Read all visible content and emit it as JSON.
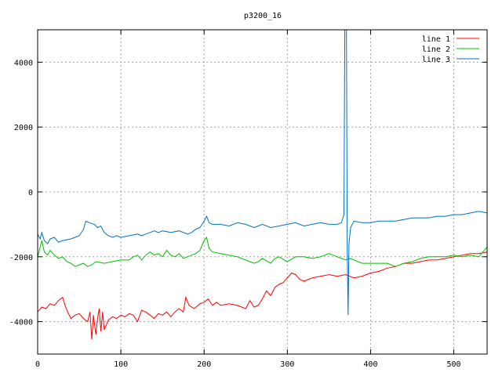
{
  "chart_data": {
    "type": "line",
    "title": "p3200_16",
    "xlabel": "",
    "ylabel": "",
    "xlim": [
      0,
      540
    ],
    "ylim": [
      -5000,
      5000
    ],
    "x_ticks": [
      0,
      100,
      200,
      300,
      400,
      500
    ],
    "y_ticks": [
      -4000,
      -2000,
      0,
      2000,
      4000
    ],
    "grid": true,
    "legend_position": "top-right",
    "series": [
      {
        "name": "line 1",
        "color": "#ff0000",
        "points": [
          [
            0,
            -3700
          ],
          [
            5,
            -3550
          ],
          [
            10,
            -3600
          ],
          [
            15,
            -3450
          ],
          [
            20,
            -3500
          ],
          [
            25,
            -3350
          ],
          [
            30,
            -3250
          ],
          [
            33,
            -3500
          ],
          [
            36,
            -3700
          ],
          [
            40,
            -3900
          ],
          [
            45,
            -3800
          ],
          [
            50,
            -3750
          ],
          [
            55,
            -3900
          ],
          [
            60,
            -4000
          ],
          [
            63,
            -3700
          ],
          [
            65,
            -4550
          ],
          [
            67,
            -3800
          ],
          [
            70,
            -4400
          ],
          [
            72,
            -3900
          ],
          [
            74,
            -3600
          ],
          [
            76,
            -4300
          ],
          [
            78,
            -3700
          ],
          [
            80,
            -4250
          ],
          [
            85,
            -3950
          ],
          [
            90,
            -3850
          ],
          [
            95,
            -3900
          ],
          [
            100,
            -3800
          ],
          [
            105,
            -3850
          ],
          [
            110,
            -3750
          ],
          [
            115,
            -3800
          ],
          [
            120,
            -4000
          ],
          [
            125,
            -3650
          ],
          [
            130,
            -3700
          ],
          [
            135,
            -3800
          ],
          [
            140,
            -3900
          ],
          [
            145,
            -3750
          ],
          [
            150,
            -3800
          ],
          [
            155,
            -3700
          ],
          [
            160,
            -3850
          ],
          [
            165,
            -3700
          ],
          [
            170,
            -3600
          ],
          [
            175,
            -3700
          ],
          [
            178,
            -3250
          ],
          [
            182,
            -3500
          ],
          [
            188,
            -3600
          ],
          [
            195,
            -3450
          ],
          [
            200,
            -3400
          ],
          [
            205,
            -3300
          ],
          [
            210,
            -3500
          ],
          [
            215,
            -3400
          ],
          [
            220,
            -3500
          ],
          [
            230,
            -3450
          ],
          [
            240,
            -3500
          ],
          [
            250,
            -3600
          ],
          [
            255,
            -3350
          ],
          [
            260,
            -3550
          ],
          [
            265,
            -3500
          ],
          [
            270,
            -3300
          ],
          [
            275,
            -3050
          ],
          [
            280,
            -3200
          ],
          [
            285,
            -2950
          ],
          [
            290,
            -2850
          ],
          [
            295,
            -2800
          ],
          [
            300,
            -2650
          ],
          [
            305,
            -2500
          ],
          [
            310,
            -2550
          ],
          [
            315,
            -2700
          ],
          [
            320,
            -2750
          ],
          [
            330,
            -2650
          ],
          [
            340,
            -2600
          ],
          [
            350,
            -2550
          ],
          [
            360,
            -2600
          ],
          [
            370,
            -2550
          ],
          [
            380,
            -2650
          ],
          [
            390,
            -2600
          ],
          [
            400,
            -2500
          ],
          [
            410,
            -2450
          ],
          [
            420,
            -2350
          ],
          [
            430,
            -2300
          ],
          [
            440,
            -2200
          ],
          [
            450,
            -2200
          ],
          [
            460,
            -2150
          ],
          [
            470,
            -2100
          ],
          [
            480,
            -2100
          ],
          [
            490,
            -2050
          ],
          [
            500,
            -2000
          ],
          [
            510,
            -1950
          ],
          [
            520,
            -1900
          ],
          [
            530,
            -1900
          ],
          [
            540,
            -1850
          ]
        ]
      },
      {
        "name": "line 2",
        "color": "#00c000",
        "points": [
          [
            0,
            -2000
          ],
          [
            3,
            -1700
          ],
          [
            5,
            -1500
          ],
          [
            8,
            -1850
          ],
          [
            12,
            -1950
          ],
          [
            15,
            -1800
          ],
          [
            20,
            -1950
          ],
          [
            25,
            -2050
          ],
          [
            30,
            -2000
          ],
          [
            35,
            -2150
          ],
          [
            40,
            -2200
          ],
          [
            45,
            -2300
          ],
          [
            50,
            -2250
          ],
          [
            55,
            -2200
          ],
          [
            60,
            -2300
          ],
          [
            65,
            -2250
          ],
          [
            70,
            -2150
          ],
          [
            80,
            -2200
          ],
          [
            90,
            -2150
          ],
          [
            100,
            -2100
          ],
          [
            110,
            -2100
          ],
          [
            115,
            -2000
          ],
          [
            120,
            -1950
          ],
          [
            125,
            -2100
          ],
          [
            130,
            -1950
          ],
          [
            135,
            -1850
          ],
          [
            140,
            -1950
          ],
          [
            145,
            -1900
          ],
          [
            150,
            -2000
          ],
          [
            155,
            -1800
          ],
          [
            160,
            -1950
          ],
          [
            165,
            -2000
          ],
          [
            170,
            -1900
          ],
          [
            175,
            -2050
          ],
          [
            180,
            -2000
          ],
          [
            185,
            -1950
          ],
          [
            190,
            -1900
          ],
          [
            195,
            -1800
          ],
          [
            200,
            -1500
          ],
          [
            203,
            -1400
          ],
          [
            206,
            -1750
          ],
          [
            210,
            -1850
          ],
          [
            220,
            -1900
          ],
          [
            230,
            -1950
          ],
          [
            240,
            -2000
          ],
          [
            250,
            -2100
          ],
          [
            260,
            -2200
          ],
          [
            265,
            -2150
          ],
          [
            270,
            -2050
          ],
          [
            280,
            -2200
          ],
          [
            285,
            -2050
          ],
          [
            290,
            -2000
          ],
          [
            300,
            -2150
          ],
          [
            310,
            -2000
          ],
          [
            320,
            -2000
          ],
          [
            330,
            -2050
          ],
          [
            340,
            -2000
          ],
          [
            350,
            -1900
          ],
          [
            360,
            -2000
          ],
          [
            365,
            -2050
          ],
          [
            370,
            -2100
          ],
          [
            375,
            -2050
          ],
          [
            380,
            -2100
          ],
          [
            390,
            -2200
          ],
          [
            400,
            -2200
          ],
          [
            410,
            -2200
          ],
          [
            420,
            -2200
          ],
          [
            430,
            -2300
          ],
          [
            440,
            -2200
          ],
          [
            450,
            -2150
          ],
          [
            460,
            -2050
          ],
          [
            470,
            -2000
          ],
          [
            480,
            -2000
          ],
          [
            490,
            -2000
          ],
          [
            500,
            -1950
          ],
          [
            510,
            -2000
          ],
          [
            520,
            -1950
          ],
          [
            530,
            -2000
          ],
          [
            535,
            -1850
          ],
          [
            540,
            -1700
          ]
        ]
      },
      {
        "name": "line 3",
        "color": "#0070c0",
        "points": [
          [
            0,
            -1300
          ],
          [
            3,
            -1450
          ],
          [
            5,
            -1250
          ],
          [
            8,
            -1500
          ],
          [
            12,
            -1600
          ],
          [
            15,
            -1450
          ],
          [
            20,
            -1400
          ],
          [
            25,
            -1550
          ],
          [
            30,
            -1500
          ],
          [
            40,
            -1450
          ],
          [
            50,
            -1350
          ],
          [
            55,
            -1150
          ],
          [
            58,
            -900
          ],
          [
            62,
            -950
          ],
          [
            68,
            -1000
          ],
          [
            72,
            -1100
          ],
          [
            76,
            -1050
          ],
          [
            80,
            -1250
          ],
          [
            85,
            -1350
          ],
          [
            90,
            -1400
          ],
          [
            95,
            -1350
          ],
          [
            100,
            -1400
          ],
          [
            110,
            -1350
          ],
          [
            120,
            -1300
          ],
          [
            125,
            -1350
          ],
          [
            130,
            -1300
          ],
          [
            135,
            -1250
          ],
          [
            140,
            -1200
          ],
          [
            145,
            -1250
          ],
          [
            150,
            -1200
          ],
          [
            160,
            -1250
          ],
          [
            170,
            -1200
          ],
          [
            180,
            -1300
          ],
          [
            185,
            -1250
          ],
          [
            190,
            -1150
          ],
          [
            195,
            -1100
          ],
          [
            200,
            -900
          ],
          [
            203,
            -750
          ],
          [
            206,
            -950
          ],
          [
            210,
            -1000
          ],
          [
            220,
            -1000
          ],
          [
            230,
            -1050
          ],
          [
            240,
            -950
          ],
          [
            250,
            -1000
          ],
          [
            260,
            -1100
          ],
          [
            265,
            -1050
          ],
          [
            270,
            -1000
          ],
          [
            280,
            -1100
          ],
          [
            290,
            -1050
          ],
          [
            300,
            -1000
          ],
          [
            310,
            -950
          ],
          [
            320,
            -1050
          ],
          [
            330,
            -1000
          ],
          [
            340,
            -950
          ],
          [
            350,
            -1000
          ],
          [
            360,
            -1000
          ],
          [
            365,
            -950
          ],
          [
            368,
            -700
          ],
          [
            369,
            5000
          ],
          [
            371,
            5000
          ],
          [
            372,
            -1800
          ],
          [
            373,
            -3800
          ],
          [
            374,
            -1600
          ],
          [
            376,
            -1100
          ],
          [
            380,
            -900
          ],
          [
            390,
            -950
          ],
          [
            400,
            -950
          ],
          [
            410,
            -900
          ],
          [
            420,
            -900
          ],
          [
            430,
            -900
          ],
          [
            440,
            -850
          ],
          [
            450,
            -800
          ],
          [
            460,
            -800
          ],
          [
            470,
            -800
          ],
          [
            480,
            -750
          ],
          [
            490,
            -750
          ],
          [
            500,
            -700
          ],
          [
            510,
            -700
          ],
          [
            520,
            -650
          ],
          [
            530,
            -600
          ],
          [
            540,
            -650
          ]
        ]
      }
    ]
  }
}
